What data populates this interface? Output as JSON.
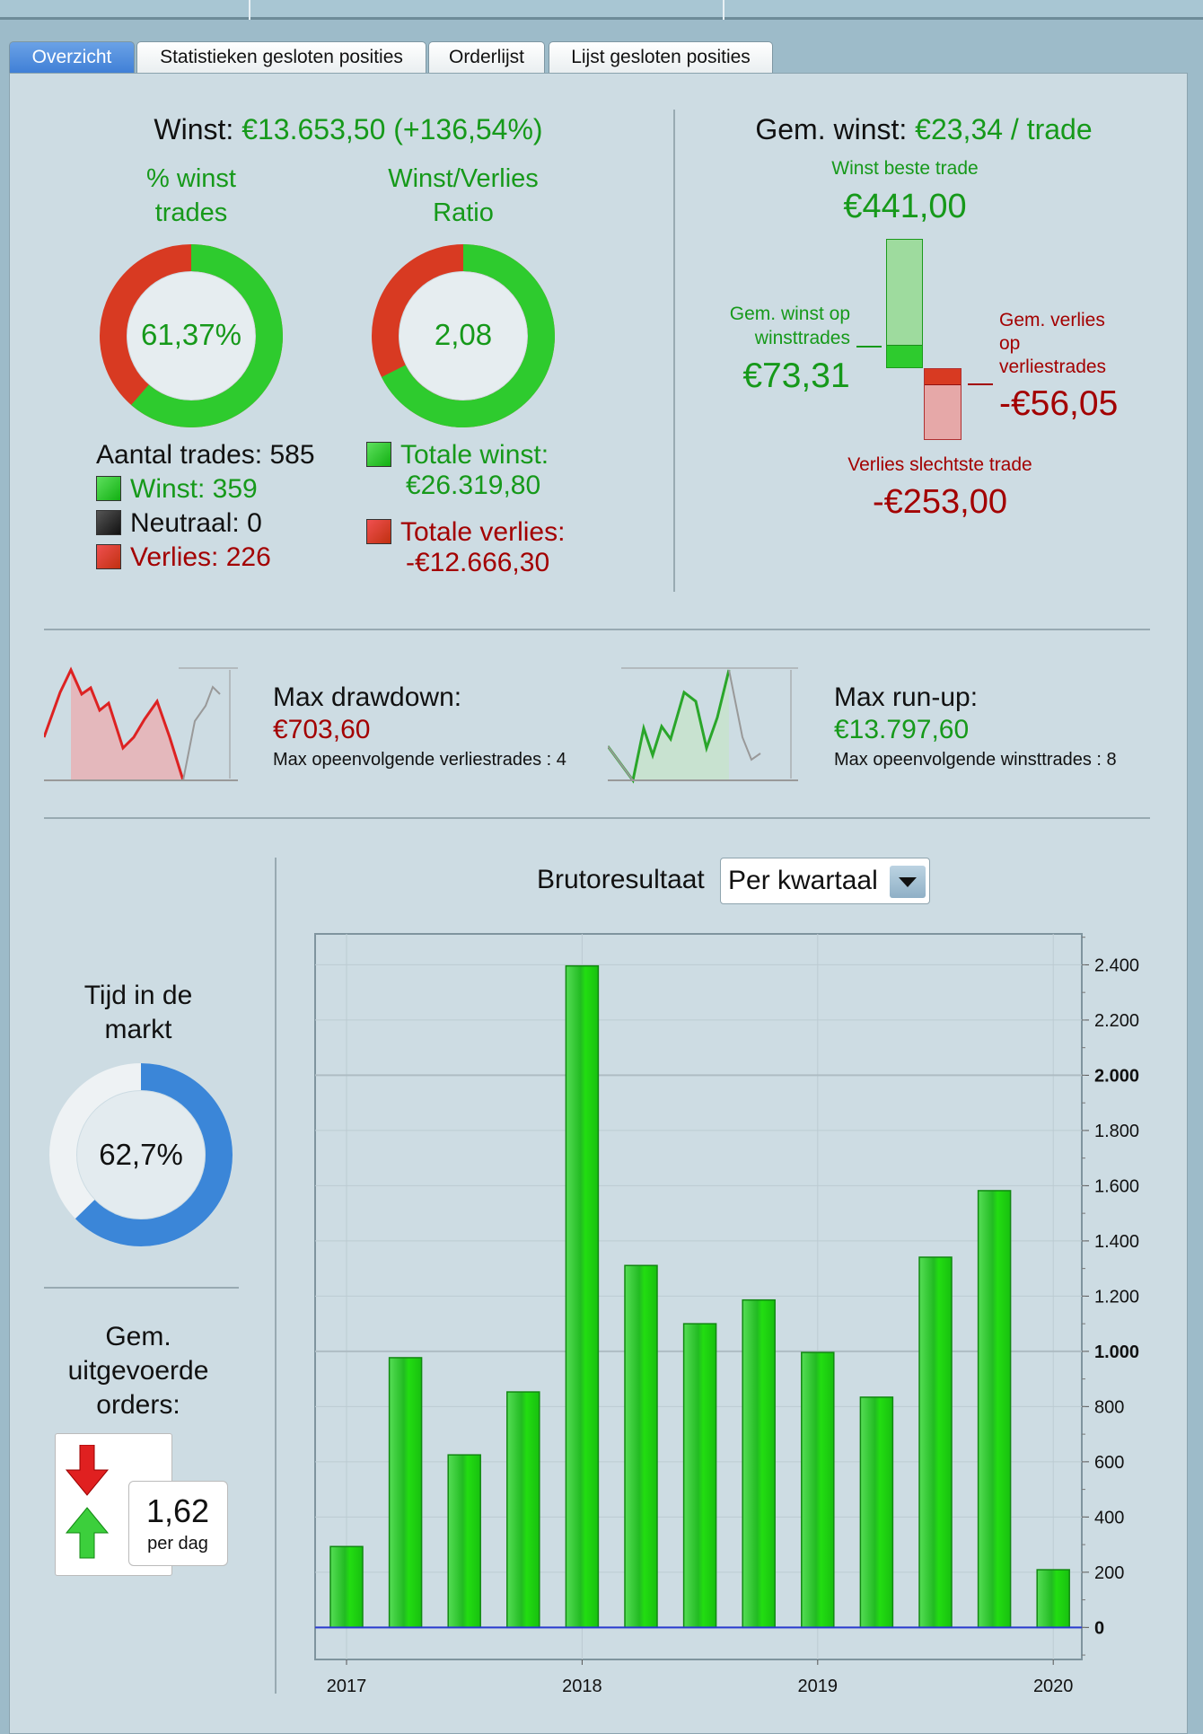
{
  "tabs": [
    {
      "label": "Overzicht",
      "active": true
    },
    {
      "label": "Statistieken gesloten posities"
    },
    {
      "label": "Orderlijst"
    },
    {
      "label": "Lijst gesloten posities"
    }
  ],
  "summary": {
    "winst_label": "Winst:",
    "winst_value": "€13.653,50 (+136,54%)",
    "pct_title_1": "% winst",
    "pct_title_2": "trades",
    "pct_value": "61,37%",
    "pct_fraction": 0.6137,
    "ratio_title_1": "Winst/Verlies",
    "ratio_title_2": "Ratio",
    "ratio_value": "2,08",
    "aantal": "Aantal trades: 585",
    "winst_count": "Winst: 359",
    "neutraal": "Neutraal: 0",
    "verlies_count": "Verlies: 226",
    "totale_winst_label": "Totale winst:",
    "totale_winst": "€26.319,80",
    "totale_verlies_label": "Totale verlies:",
    "totale_verlies": "-€12.666,30"
  },
  "avg": {
    "title_label": "Gem. winst:",
    "title_value": "€23,34 / trade",
    "best_label": "Winst beste trade",
    "best_value": "€441,00",
    "avg_win_label_1": "Gem. winst op",
    "avg_win_label_2": "winsttrades",
    "avg_win_value": "€73,31",
    "avg_loss_label_1": "Gem. verlies",
    "avg_loss_label_2": "op",
    "avg_loss_label_3": "verliestrades",
    "avg_loss_value": "-€56,05",
    "worst_label": "Verlies slechtste trade",
    "worst_value": "-€253,00"
  },
  "drawdown": {
    "label": "Max drawdown:",
    "value": "€703,60",
    "sub": "Max opeenvolgende verliestrades : 4"
  },
  "runup": {
    "label": "Max run-up:",
    "value": "€13.797,60",
    "sub": "Max opeenvolgende winsttrades : 8"
  },
  "market": {
    "title_1": "Tijd in de",
    "title_2": "markt",
    "value": "62,7%",
    "fraction": 0.627
  },
  "orders": {
    "title_1": "Gem.",
    "title_2": "uitgevoerde",
    "title_3": "orders:",
    "value": "1,62",
    "unit": "per dag"
  },
  "chart_header": {
    "title": "Brutoresultaat",
    "dropdown": "Per kwartaal"
  },
  "colors": {
    "green": "#16991a",
    "red": "#a30000",
    "bar": "#22cc22",
    "zero_line": "#2a3cd0",
    "blue": "#3b86d8"
  },
  "chart_data": {
    "type": "bar",
    "title": "Brutoresultaat",
    "categories": [
      "2017 Q1",
      "2017 Q2",
      "2017 Q3",
      "2017 Q4",
      "2018 Q1",
      "2018 Q2",
      "2018 Q3",
      "2018 Q4",
      "2019 Q1",
      "2019 Q2",
      "2019 Q3",
      "2019 Q4",
      "2020 Q1"
    ],
    "values": [
      293,
      977,
      625,
      853,
      2396,
      1311,
      1100,
      1186,
      996,
      834,
      1341,
      1582,
      209
    ],
    "x_ticks": [
      "2017",
      "2018",
      "2019",
      "2020"
    ],
    "y_ticks": [
      0,
      200,
      400,
      600,
      800,
      1000,
      1200,
      1400,
      1600,
      1800,
      2000,
      2200,
      2400
    ],
    "y_tick_labels": [
      "0",
      "200",
      "400",
      "600",
      "800",
      "1.000",
      "1.200",
      "1.400",
      "1.600",
      "1.800",
      "2.000",
      "2.200",
      "2.400"
    ],
    "ylim": [
      -116,
      2512
    ],
    "grid": true,
    "y_axis_side": "right"
  }
}
